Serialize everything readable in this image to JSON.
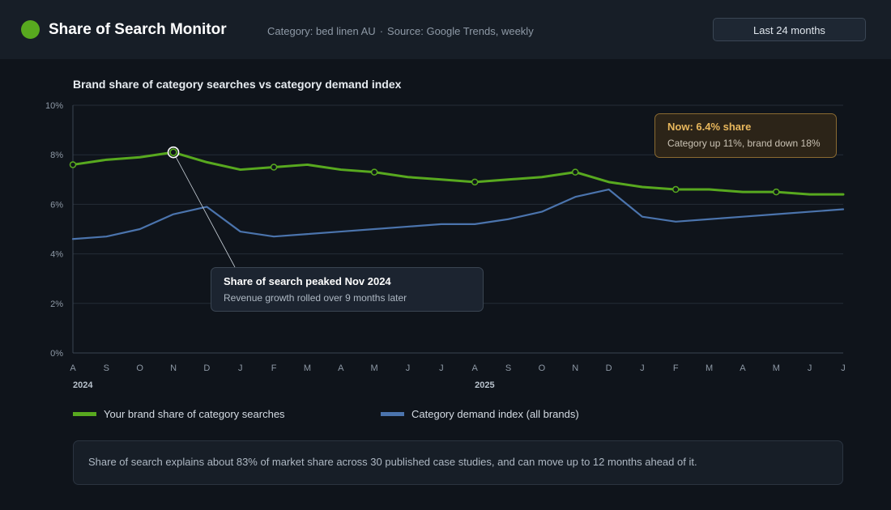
{
  "header": {
    "title": "Share of Search Monitor",
    "category": "Category: bed linen AU",
    "separator": "·",
    "source": "Source: Google Trends, weekly",
    "range_button": "Last 24 months"
  },
  "colors": {
    "brand_green": "#58a91f",
    "category_blue": "#4b74ad",
    "annotation_gold": "#e8b75c"
  },
  "chart_data": {
    "type": "line",
    "title": "Brand share of category searches vs category demand index",
    "x": [
      "A",
      "S",
      "O",
      "N",
      "D",
      "J",
      "F",
      "M",
      "A",
      "M",
      "J",
      "J",
      "A",
      "S",
      "O",
      "N",
      "D",
      "J",
      "F",
      "M",
      "A",
      "M",
      "J",
      "J"
    ],
    "year_labels": [
      {
        "index": 0,
        "label": "2024"
      },
      {
        "index": 12,
        "label": "2025"
      }
    ],
    "ylim": [
      0,
      10
    ],
    "yticks": [
      "0%",
      "2%",
      "4%",
      "6%",
      "8%",
      "10%"
    ],
    "grid": true,
    "series": [
      {
        "name": "Your brand share of category searches",
        "color": "#58a91f",
        "values": [
          7.6,
          7.8,
          7.9,
          8.1,
          7.7,
          7.4,
          7.5,
          7.6,
          7.4,
          7.3,
          7.1,
          7.0,
          6.9,
          7.0,
          7.1,
          7.3,
          6.9,
          6.7,
          6.6,
          6.6,
          6.5,
          6.5,
          6.4,
          6.4
        ],
        "marker_indices": [
          0,
          3,
          6,
          9,
          12,
          15,
          18,
          21
        ]
      },
      {
        "name": "Category demand index (all brands)",
        "color": "#4b74ad",
        "values": [
          4.6,
          4.7,
          5.0,
          5.6,
          5.9,
          4.9,
          4.7,
          4.8,
          4.9,
          5.0,
          5.1,
          5.2,
          5.2,
          5.4,
          5.7,
          6.3,
          6.6,
          5.5,
          5.3,
          5.4,
          5.5,
          5.6,
          5.7,
          5.8
        ]
      }
    ],
    "annotations": {
      "peak": {
        "index": 3,
        "title": "Share of search peaked Nov 2024",
        "subtitle": "Revenue growth rolled over 9 months later"
      },
      "now": {
        "title": "Now: 6.4% share",
        "subtitle": "Category up 11%, brand down 18%"
      }
    }
  },
  "footnote": "Share of search explains about 83% of market share across 30 published case studies, and can move up to 12 months ahead of it."
}
